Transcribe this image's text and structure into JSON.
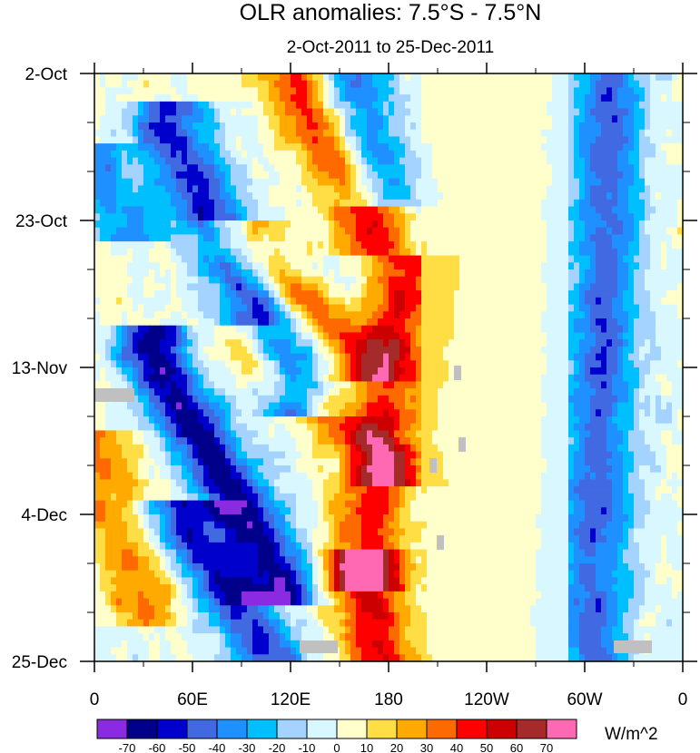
{
  "chart_data": {
    "type": "heatmap",
    "title": "OLR anomalies: 7.5°S - 7.5°N",
    "subtitle": "2-Oct-2011 to 25-Dec-2011",
    "x_ticks": [
      "0",
      "60E",
      "120E",
      "180",
      "120W",
      "60W",
      "0"
    ],
    "y_ticks": [
      "2-Oct",
      "23-Oct",
      "13-Nov",
      "4-Dec",
      "25-Dec"
    ],
    "units": "W/m^2",
    "colorbar": {
      "levels": [
        -70,
        -60,
        -50,
        -40,
        -30,
        -20,
        -10,
        0,
        10,
        20,
        30,
        40,
        50,
        60,
        70
      ],
      "colors": [
        "#8a2be2",
        "#00008b",
        "#0000cd",
        "#4169e1",
        "#1e90ff",
        "#00bfff",
        "#a4d3ff",
        "#d9f7ff",
        "#ffffcc",
        "#ffdd44",
        "#ffaa00",
        "#ff6a00",
        "#ff0000",
        "#cc0000",
        "#a52a2a",
        "#ff69b4"
      ]
    },
    "features": {
      "negative_bands": [
        {
          "lon0": 45,
          "day0": 8,
          "lon1": 125,
          "day1": 45,
          "amp": -55
        },
        {
          "lon0": 35,
          "day0": 40,
          "lon1": 115,
          "day1": 72,
          "amp": -65
        },
        {
          "lon0": 55,
          "day0": 65,
          "lon1": 110,
          "day1": 84,
          "amp": -55
        },
        {
          "lon0": 0,
          "day0": 14,
          "lon1": 20,
          "day1": 20,
          "amp": -35
        },
        {
          "lon0": 155,
          "day0": 0,
          "lon1": 175,
          "day1": 15,
          "amp": -40
        }
      ],
      "positive_bands": [
        {
          "lon0": 120,
          "day0": 0,
          "lon1": 170,
          "day1": 22,
          "amp": 45
        },
        {
          "lon0": 90,
          "day0": 25,
          "lon1": 165,
          "day1": 40,
          "amp": 40
        },
        {
          "lon0": 95,
          "day0": 40,
          "lon1": 180,
          "day1": 55,
          "amp": 35
        },
        {
          "lon0": 190,
          "day0": 30,
          "lon1": 165,
          "day1": 70,
          "amp": 45
        },
        {
          "lon0": 165,
          "day0": 72,
          "lon1": 175,
          "day1": 84,
          "amp": 50
        },
        {
          "lon0": 0,
          "day0": 55,
          "lon1": 30,
          "day1": 75,
          "amp": 30
        }
      ],
      "east_pacific_negative": [
        {
          "lon0": 315,
          "day0": 0,
          "lon1": 305,
          "day1": 84,
          "amp": -45
        }
      ]
    }
  }
}
